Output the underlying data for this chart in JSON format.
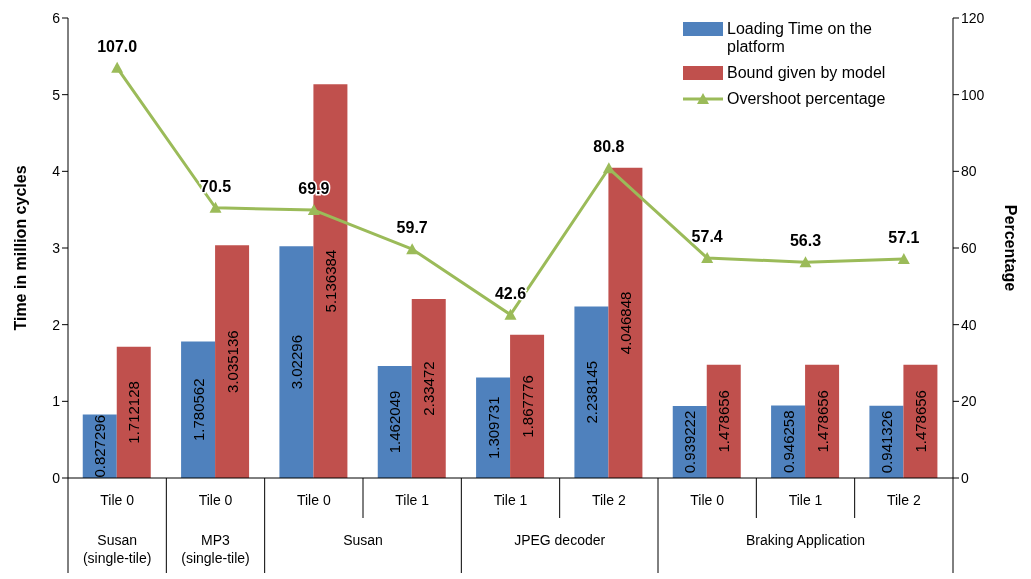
{
  "chart_data": {
    "type": "bar",
    "categories": [
      "Tile 0",
      "Tile 0",
      "Tile 0",
      "Tile 1",
      "Tile 1",
      "Tile 2",
      "Tile 0",
      "Tile 1",
      "Tile 2"
    ],
    "annotations": [
      "Susan (single-tile)",
      "MP3 (single-tile)",
      "Susan",
      "JPEG decoder",
      "Braking Application"
    ],
    "series": [
      {
        "name": "Loading Time on the platform",
        "color": "#4f81bd",
        "values": [
          0.827296,
          1.780562,
          3.02296,
          1.462049,
          1.309731,
          2.238145,
          0.939222,
          0.946258,
          0.941326
        ]
      },
      {
        "name": "Bound given by model",
        "color": "#c0504d",
        "values": [
          1.712128,
          3.035136,
          5.136384,
          2.33472,
          1.867776,
          4.046848,
          1.478656,
          1.478656,
          1.478656
        ]
      },
      {
        "name": "Overshoot percentage",
        "type": "line",
        "axis": "y2",
        "color": "#9bbb59",
        "marker": "triangle",
        "values": [
          107.0,
          70.5,
          69.9,
          59.7,
          42.6,
          80.8,
          57.4,
          56.3,
          57.1
        ],
        "value_labels": [
          "107.0",
          "70.5",
          "69.9",
          "59.7",
          "42.6",
          "80.8",
          "57.4",
          "56.3",
          "57.1"
        ]
      }
    ],
    "data_labels": true,
    "ylabel": "Time in million cycles",
    "y2label": "Percentage",
    "ylim": [
      0,
      6
    ],
    "yticks": [
      0,
      1,
      2,
      3,
      4,
      5,
      6
    ],
    "y2lim": [
      0,
      120
    ],
    "y2ticks": [
      0,
      20,
      40,
      60,
      80,
      100,
      120
    ],
    "grid": false,
    "legend": "top right"
  }
}
